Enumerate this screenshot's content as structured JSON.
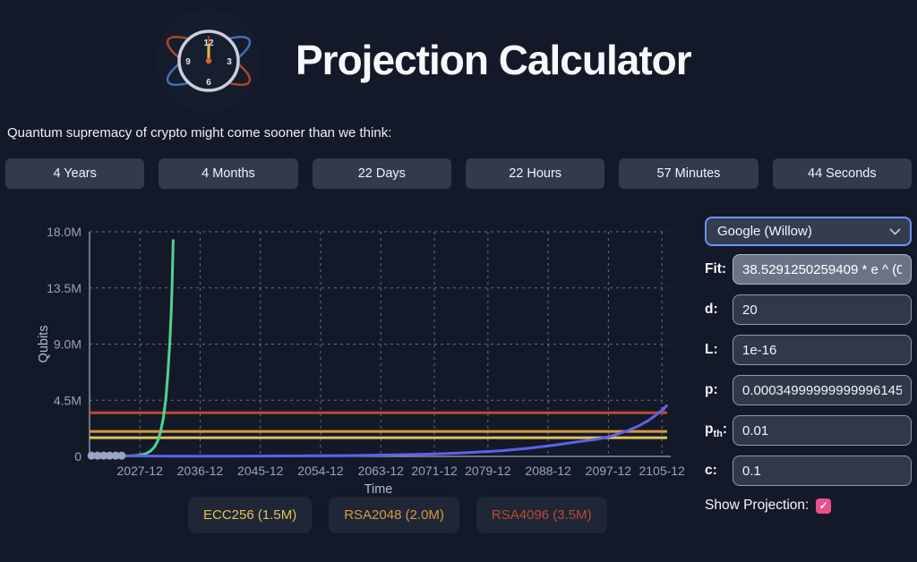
{
  "header": {
    "title": "Projection Calculator",
    "logo": "atomic-clock"
  },
  "subtitle": "Quantum supremacy of crypto might come sooner than we think:",
  "countdown": {
    "items": [
      "4 Years",
      "4 Months",
      "22 Days",
      "22 Hours",
      "57 Minutes",
      "44 Seconds"
    ]
  },
  "controls": {
    "device_select": {
      "value": "Google (Willow)"
    },
    "fields": [
      {
        "id": "fit",
        "label": "Fit:",
        "value": "38.5291250259409 * e ^ (0",
        "readonly": true
      },
      {
        "id": "d",
        "label": "d:",
        "value": "20"
      },
      {
        "id": "L",
        "label": "L:",
        "value": "1e-16"
      },
      {
        "id": "p",
        "label": "p:",
        "value": "0.00034999999999996145"
      },
      {
        "id": "pth",
        "label_main": "p",
        "label_sub": "th",
        "label_suffix": ":",
        "value": "0.01"
      },
      {
        "id": "c",
        "label": "c:",
        "value": "0.1"
      }
    ],
    "show_projection": {
      "label": "Show Projection:",
      "checked": true,
      "checkbox_color": "#ed4f8b",
      "check_glyph": "✓"
    }
  },
  "chart_data": {
    "type": "line",
    "title": "",
    "xlabel": "Time",
    "ylabel": "Qubits",
    "x_domain_years": [
      2020.4,
      2106.7
    ],
    "y_domain_M": [
      0,
      18
    ],
    "grid": true,
    "x_ticks": [
      {
        "label": "2027-12",
        "year": 2027.92
      },
      {
        "label": "2036-12",
        "year": 2036.92
      },
      {
        "label": "2045-12",
        "year": 2045.92
      },
      {
        "label": "2054-12",
        "year": 2054.92
      },
      {
        "label": "2063-12",
        "year": 2063.92
      },
      {
        "label": "2071-12",
        "year": 2071.92
      },
      {
        "label": "2079-12",
        "year": 2079.92
      },
      {
        "label": "2088-12",
        "year": 2088.92
      },
      {
        "label": "2097-12",
        "year": 2097.92
      },
      {
        "label": "2105-12",
        "year": 2105.92
      }
    ],
    "y_ticks": [
      {
        "label": "0",
        "value": 0
      },
      {
        "label": "4.5M",
        "value": 4.5
      },
      {
        "label": "9.0M",
        "value": 9.0
      },
      {
        "label": "13.5M",
        "value": 13.5
      },
      {
        "label": "18.0M",
        "value": 18.0
      }
    ],
    "thresholds": [
      {
        "name": "ECC256",
        "value_M": 1.5,
        "color": "#e0c355",
        "label": "ECC256 (1.5M)"
      },
      {
        "name": "RSA2048",
        "value_M": 2.0,
        "color": "#d89a3d",
        "label": "RSA2048 (2.0M)"
      },
      {
        "name": "RSA4096",
        "value_M": 3.5,
        "color": "#bb4b2f",
        "label": "RSA4096 (3.5M)"
      }
    ],
    "series": [
      {
        "name": "qubit-growth-fit",
        "color": "#4fd393",
        "arrow_end": false,
        "points": [
          [
            2020.4,
            0.02
          ],
          [
            2024.0,
            0.02
          ],
          [
            2026.5,
            0.04
          ],
          [
            2027.9,
            0.1
          ],
          [
            2028.8,
            0.22
          ],
          [
            2029.5,
            0.42
          ],
          [
            2030.1,
            0.75
          ],
          [
            2030.6,
            1.25
          ],
          [
            2031.0,
            1.95
          ],
          [
            2031.4,
            3.0
          ],
          [
            2031.8,
            4.6
          ],
          [
            2032.1,
            6.6
          ],
          [
            2032.4,
            9.2
          ],
          [
            2032.6,
            11.6
          ],
          [
            2032.75,
            14.0
          ],
          [
            2032.9,
            17.3
          ]
        ]
      },
      {
        "name": "projection",
        "color": "#5d63e8",
        "arrow_end": true,
        "points": [
          [
            2020.4,
            0.05
          ],
          [
            2025.2,
            0.05
          ],
          [
            2032,
            0.02
          ],
          [
            2042,
            0.02
          ],
          [
            2052,
            0.04
          ],
          [
            2060,
            0.07
          ],
          [
            2066,
            0.12
          ],
          [
            2072,
            0.2
          ],
          [
            2077,
            0.3
          ],
          [
            2082,
            0.46
          ],
          [
            2086,
            0.65
          ],
          [
            2090,
            0.92
          ],
          [
            2093.5,
            1.18
          ],
          [
            2096.5,
            1.4
          ],
          [
            2098.5,
            1.65
          ],
          [
            2100.5,
            2.0
          ],
          [
            2102.3,
            2.4
          ],
          [
            2103.8,
            2.85
          ],
          [
            2105.0,
            3.3
          ],
          [
            2106.0,
            3.75
          ],
          [
            2106.6,
            4.05
          ]
        ]
      }
    ],
    "scatter": {
      "name": "historical-qubit-counts",
      "color": "#9aa4c4",
      "radius": 4.5,
      "points": [
        [
          2020.7,
          0.06
        ],
        [
          2021.6,
          0.06
        ],
        [
          2022.5,
          0.06
        ],
        [
          2023.4,
          0.06
        ],
        [
          2024.3,
          0.06
        ],
        [
          2025.2,
          0.06
        ]
      ]
    },
    "layout": {
      "legend_position": "bottom",
      "colors": {
        "grid": "#949cb0",
        "axis": "#b6bdcc",
        "tick_text": "#9ba3b4"
      }
    }
  }
}
